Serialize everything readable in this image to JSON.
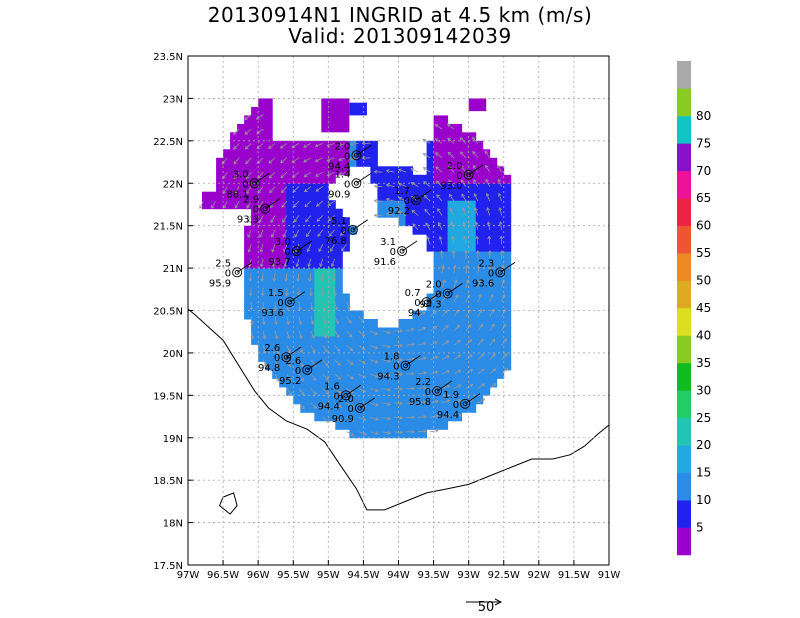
{
  "chart_data": {
    "type": "wind-barb-map",
    "title": "20130914N1 INGRID at 4.5 km (m/s)",
    "subtitle": "Valid: 201309142039",
    "x_ticks": [
      "97W",
      "96.5W",
      "96W",
      "95.5W",
      "95W",
      "94.5W",
      "94W",
      "93.5W",
      "93W",
      "92.5W",
      "92W",
      "91.5W",
      "91W"
    ],
    "y_ticks": [
      "17.5N",
      "18N",
      "18.5N",
      "19N",
      "19.5N",
      "20N",
      "20.5N",
      "21N",
      "21.5N",
      "22N",
      "22.5N",
      "23N",
      "23.5N"
    ],
    "xlim": [
      -97,
      -91
    ],
    "ylim": [
      17.5,
      23.5
    ],
    "colorbar": {
      "labels": [
        "5",
        "10",
        "15",
        "20",
        "25",
        "30",
        "35",
        "40",
        "45",
        "50",
        "55",
        "60",
        "65",
        "70",
        "75",
        "80"
      ],
      "colors": [
        "#9900cc",
        "#2222ee",
        "#2a8ce6",
        "#22a8e0",
        "#22c4b4",
        "#22cc66",
        "#11bb22",
        "#88cc22",
        "#dddd22",
        "#ddaa22",
        "#ee8822",
        "#ee5533",
        "#ee2244",
        "#ee1199",
        "#8811cc",
        "#11c4c4",
        "#88cc22",
        "#aaaaaa"
      ]
    },
    "reference_vector": "50",
    "dropsondes": [
      {
        "lon": -94.6,
        "lat": 22.33,
        "top": "2.0",
        "mid": "0",
        "bottom": "94.4"
      },
      {
        "lon": -96.05,
        "lat": 22.0,
        "top": "3.0",
        "mid": "0",
        "bottom": "88.1"
      },
      {
        "lon": -94.6,
        "lat": 22.0,
        "top": "1.4",
        "mid": "0",
        "bottom": "90.9"
      },
      {
        "lon": -93.0,
        "lat": 22.1,
        "top": "2.0",
        "mid": "0",
        "bottom": "93.0"
      },
      {
        "lon": -93.75,
        "lat": 21.8,
        "top": "1.7",
        "mid": "0",
        "bottom": "92.2"
      },
      {
        "lon": -95.9,
        "lat": 21.7,
        "top": "2.9",
        "mid": "0",
        "bottom": "93.3"
      },
      {
        "lon": -94.65,
        "lat": 21.45,
        "top": "5.1",
        "mid": "0",
        "bottom": "76.8"
      },
      {
        "lon": -93.95,
        "lat": 21.2,
        "top": "3.1",
        "mid": "0",
        "bottom": "91.6"
      },
      {
        "lon": -95.45,
        "lat": 21.2,
        "top": "3.0",
        "mid": "0",
        "bottom": "93.7"
      },
      {
        "lon": -96.3,
        "lat": 20.95,
        "top": "2.5",
        "mid": "0",
        "bottom": "95.9"
      },
      {
        "lon": -92.55,
        "lat": 20.95,
        "top": "2.3",
        "mid": "0",
        "bottom": "93.6"
      },
      {
        "lon": -93.3,
        "lat": 20.7,
        "top": "2.0",
        "mid": "0",
        "bottom": "94.3"
      },
      {
        "lon": -93.6,
        "lat": 20.6,
        "top": "0.7",
        "mid": "0",
        "bottom": "94"
      },
      {
        "lon": -95.55,
        "lat": 20.6,
        "top": "1.5",
        "mid": "0",
        "bottom": "93.6"
      },
      {
        "lon": -95.6,
        "lat": 19.95,
        "top": "2.6",
        "mid": "0",
        "bottom": "94.8"
      },
      {
        "lon": -95.3,
        "lat": 19.8,
        "top": "2.6",
        "mid": "0",
        "bottom": "95.2"
      },
      {
        "lon": -93.9,
        "lat": 19.85,
        "top": "1.8",
        "mid": "0",
        "bottom": "94.3"
      },
      {
        "lon": -93.45,
        "lat": 19.55,
        "top": "2.2",
        "mid": "0",
        "bottom": "95.8"
      },
      {
        "lon": -94.75,
        "lat": 19.5,
        "top": "1.6",
        "mid": "0",
        "bottom": "94.4"
      },
      {
        "lon": -93.05,
        "lat": 19.4,
        "top": "1.9",
        "mid": "0",
        "bottom": "94.4"
      },
      {
        "lon": -94.55,
        "lat": 19.35,
        "top": "2.0",
        "mid": "0",
        "bottom": "90.9"
      }
    ]
  }
}
